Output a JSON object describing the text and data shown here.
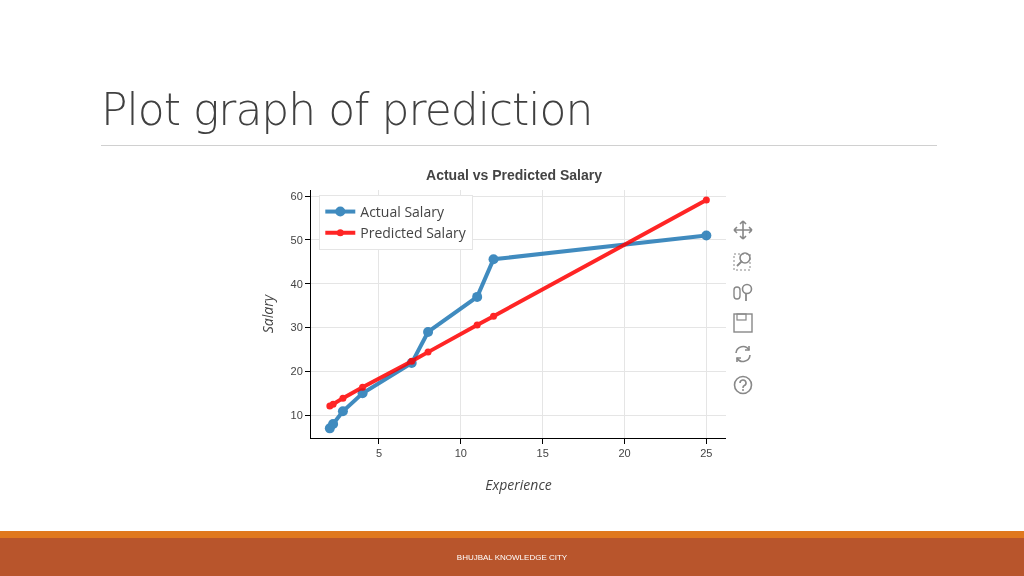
{
  "chart_data": {
    "type": "line",
    "title": "Actual vs Predicted Salary",
    "xlabel": "Experience",
    "ylabel": "Salary",
    "x": [
      2,
      2.2,
      2.8,
      4,
      7,
      8,
      11,
      12,
      25
    ],
    "series": [
      {
        "name": "Actual Salary",
        "color": "#1f77b4",
        "values": [
          7,
          8,
          10.9,
          15,
          21.9,
          29,
          37,
          45.6,
          51
        ]
      },
      {
        "name": "Predicted Salary",
        "color": "#ff0000",
        "values": [
          12.1,
          12.5,
          13.9,
          16.4,
          22.3,
          24.4,
          30.6,
          32.6,
          59.1
        ]
      }
    ],
    "xlim": [
      0.85,
      26.2
    ],
    "ylim": [
      4.8,
      61.4
    ],
    "xticks": [
      5,
      10,
      15,
      20,
      25
    ],
    "yticks": [
      10,
      20,
      30,
      40,
      50,
      60
    ],
    "grid": true,
    "legend": "top left",
    "marker": "circle",
    "line_style": "solid",
    "annotations": [
      "Plot graph of prediction",
      "BHUJBAL KNOWLEDGE CITY"
    ]
  }
}
